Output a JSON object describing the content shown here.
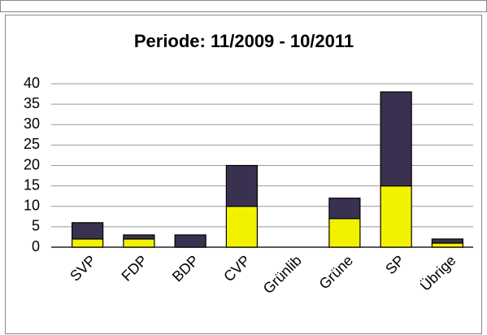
{
  "chart_data": {
    "type": "stacked_bar",
    "title": "Periode: 11/2009 - 10/2011",
    "categories": [
      "SVP",
      "FDP",
      "BDP",
      "CVP",
      "Grünlib",
      "Grüne",
      "SP",
      "Übrige"
    ],
    "series": [
      {
        "color": "#f2f200",
        "values": [
          2,
          2,
          0,
          10,
          0,
          7,
          15,
          1
        ]
      },
      {
        "color": "#3a3150",
        "values": [
          4,
          1,
          3,
          10,
          0,
          5,
          23,
          1
        ]
      }
    ],
    "ylim": [
      0,
      40
    ],
    "yticks": [
      0,
      5,
      10,
      15,
      20,
      25,
      30,
      35,
      40
    ],
    "grid": true
  }
}
